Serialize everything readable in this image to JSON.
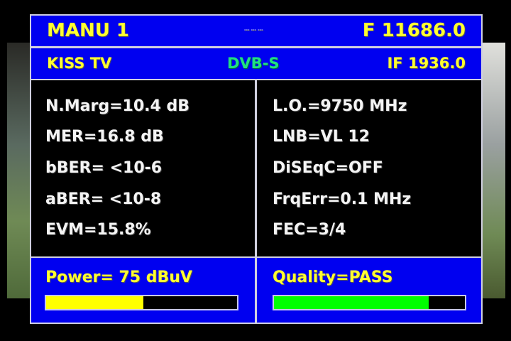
{
  "header": {
    "mode": "MANU 1",
    "indicator": "--- --- ---",
    "frequency": "F 11686.0"
  },
  "subheader": {
    "channel": "KISS TV",
    "standard": "DVB-S",
    "if": "IF 1936.0"
  },
  "left_params": [
    "N.Marg=10.4 dB",
    "MER=16.8 dB",
    "bBER= <10-6",
    "aBER= <10-8",
    "EVM=15.8%"
  ],
  "right_params": [
    "L.O.=9750 MHz",
    "LNB=VL 12",
    "DiSEqC=OFF",
    "FrqErr=0.1 MHz",
    "FEC=3/4"
  ],
  "power": {
    "label": "Power= 75 dBuV",
    "level_percent": 51,
    "color": "#ffff00"
  },
  "quality": {
    "label": "Quality=PASS",
    "level_percent": 81,
    "color": "#00ff00"
  },
  "colors": {
    "panel_blue": "#0000f0",
    "text_yellow": "#ffff30",
    "standard_green": "#20e080"
  }
}
